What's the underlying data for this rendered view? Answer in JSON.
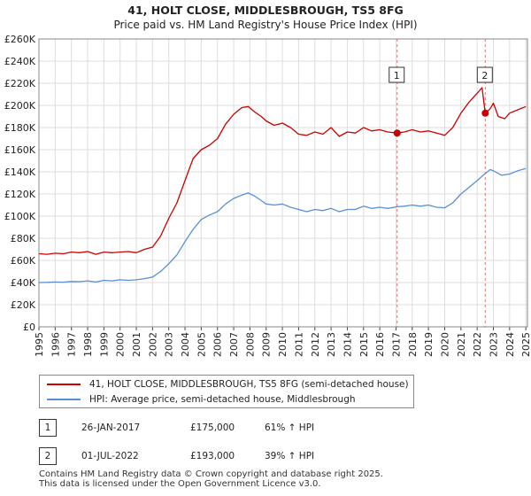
{
  "title": "41, HOLT CLOSE, MIDDLESBROUGH, TS5 8FG",
  "subtitle": "Price paid vs. HM Land Registry's House Price Index (HPI)",
  "colors": {
    "property": "#cc0000",
    "hpi": "#5b8fd4",
    "sale_marker": "#cc0000",
    "vline": "#d87a7a",
    "grid": "#dddddd"
  },
  "chart_data": {
    "type": "line",
    "title": "41, HOLT CLOSE, MIDDLESBROUGH, TS5 8FG",
    "subtitle": "Price paid vs. HM Land Registry's House Price Index (HPI)",
    "xlabel": "",
    "ylabel": "",
    "xlim": [
      1995,
      2025.1
    ],
    "ylim": [
      0,
      260000
    ],
    "y_ticks": [
      {
        "value": 0,
        "label": "£0"
      },
      {
        "value": 20000,
        "label": "£20K"
      },
      {
        "value": 40000,
        "label": "£40K"
      },
      {
        "value": 60000,
        "label": "£60K"
      },
      {
        "value": 80000,
        "label": "£80K"
      },
      {
        "value": 100000,
        "label": "£100K"
      },
      {
        "value": 120000,
        "label": "£120K"
      },
      {
        "value": 140000,
        "label": "£140K"
      },
      {
        "value": 160000,
        "label": "£160K"
      },
      {
        "value": 180000,
        "label": "£180K"
      },
      {
        "value": 200000,
        "label": "£200K"
      },
      {
        "value": 220000,
        "label": "£220K"
      },
      {
        "value": 240000,
        "label": "£240K"
      },
      {
        "value": 260000,
        "label": "£260K"
      }
    ],
    "x_ticks": [
      {
        "value": 1995,
        "label": "1995"
      },
      {
        "value": 1996,
        "label": "1996"
      },
      {
        "value": 1997,
        "label": "1997"
      },
      {
        "value": 1998,
        "label": "1998"
      },
      {
        "value": 1999,
        "label": "1999"
      },
      {
        "value": 2000,
        "label": "2000"
      },
      {
        "value": 2001,
        "label": "2001"
      },
      {
        "value": 2002,
        "label": "2002"
      },
      {
        "value": 2003,
        "label": "2003"
      },
      {
        "value": 2004,
        "label": "2004"
      },
      {
        "value": 2005,
        "label": "2005"
      },
      {
        "value": 2006,
        "label": "2006"
      },
      {
        "value": 2007,
        "label": "2007"
      },
      {
        "value": 2008,
        "label": "2008"
      },
      {
        "value": 2009,
        "label": "2009"
      },
      {
        "value": 2010,
        "label": "2010"
      },
      {
        "value": 2011,
        "label": "2011"
      },
      {
        "value": 2012,
        "label": "2012"
      },
      {
        "value": 2013,
        "label": "2013"
      },
      {
        "value": 2014,
        "label": "2014"
      },
      {
        "value": 2015,
        "label": "2015"
      },
      {
        "value": 2016,
        "label": "2016"
      },
      {
        "value": 2017,
        "label": "2017"
      },
      {
        "value": 2018,
        "label": "2018"
      },
      {
        "value": 2019,
        "label": "2019"
      },
      {
        "value": 2020,
        "label": "2020"
      },
      {
        "value": 2021,
        "label": "2021"
      },
      {
        "value": 2022,
        "label": "2022"
      },
      {
        "value": 2023,
        "label": "2023"
      },
      {
        "value": 2024,
        "label": "2024"
      },
      {
        "value": 2025,
        "label": "2025"
      }
    ],
    "grid": true,
    "series": [
      {
        "name": "41, HOLT CLOSE, MIDDLESBROUGH, TS5 8FG (semi-detached house)",
        "color": "#cc0000",
        "points": [
          [
            1995.0,
            66000
          ],
          [
            1995.5,
            65500
          ],
          [
            1996.0,
            66500
          ],
          [
            1996.5,
            66000
          ],
          [
            1997.0,
            67500
          ],
          [
            1997.5,
            67000
          ],
          [
            1998.0,
            68000
          ],
          [
            1998.5,
            65500
          ],
          [
            1999.0,
            67500
          ],
          [
            1999.5,
            67000
          ],
          [
            2000.0,
            67500
          ],
          [
            2000.5,
            68000
          ],
          [
            2001.0,
            67000
          ],
          [
            2001.5,
            70000
          ],
          [
            2002.0,
            72000
          ],
          [
            2002.5,
            82000
          ],
          [
            2003.0,
            98000
          ],
          [
            2003.5,
            112000
          ],
          [
            2004.0,
            132000
          ],
          [
            2004.5,
            152000
          ],
          [
            2005.0,
            160000
          ],
          [
            2005.5,
            164000
          ],
          [
            2006.0,
            170000
          ],
          [
            2006.5,
            183000
          ],
          [
            2007.0,
            192000
          ],
          [
            2007.5,
            198000
          ],
          [
            2007.9,
            199000
          ],
          [
            2008.3,
            194000
          ],
          [
            2008.7,
            190000
          ],
          [
            2009.0,
            186000
          ],
          [
            2009.5,
            182000
          ],
          [
            2010.0,
            184000
          ],
          [
            2010.5,
            180000
          ],
          [
            2011.0,
            174000
          ],
          [
            2011.5,
            173000
          ],
          [
            2012.0,
            176000
          ],
          [
            2012.5,
            174000
          ],
          [
            2013.0,
            180000
          ],
          [
            2013.5,
            172000
          ],
          [
            2014.0,
            176000
          ],
          [
            2014.5,
            175000
          ],
          [
            2015.0,
            180000
          ],
          [
            2015.5,
            177000
          ],
          [
            2016.0,
            178000
          ],
          [
            2016.5,
            176000
          ],
          [
            2017.07,
            175000
          ],
          [
            2017.5,
            176000
          ],
          [
            2018.0,
            178000
          ],
          [
            2018.5,
            176000
          ],
          [
            2019.0,
            177000
          ],
          [
            2019.5,
            175000
          ],
          [
            2020.0,
            173000
          ],
          [
            2020.5,
            180000
          ],
          [
            2021.0,
            193000
          ],
          [
            2021.5,
            203000
          ],
          [
            2022.0,
            211000
          ],
          [
            2022.3,
            216000
          ],
          [
            2022.5,
            193000
          ],
          [
            2022.8,
            197000
          ],
          [
            2023.0,
            202000
          ],
          [
            2023.3,
            190000
          ],
          [
            2023.7,
            188000
          ],
          [
            2024.0,
            193000
          ],
          [
            2024.5,
            196000
          ],
          [
            2025.0,
            199000
          ]
        ]
      },
      {
        "name": "HPI: Average price, semi-detached house, Middlesbrough",
        "color": "#5b8fd4",
        "points": [
          [
            1995.0,
            40000
          ],
          [
            1995.5,
            40200
          ],
          [
            1996.0,
            40500
          ],
          [
            1996.5,
            40300
          ],
          [
            1997.0,
            41000
          ],
          [
            1997.5,
            40800
          ],
          [
            1998.0,
            41500
          ],
          [
            1998.5,
            40500
          ],
          [
            1999.0,
            42000
          ],
          [
            1999.5,
            41500
          ],
          [
            2000.0,
            42500
          ],
          [
            2000.5,
            42000
          ],
          [
            2001.0,
            42500
          ],
          [
            2001.5,
            43500
          ],
          [
            2002.0,
            45000
          ],
          [
            2002.5,
            50000
          ],
          [
            2003.0,
            57000
          ],
          [
            2003.5,
            65000
          ],
          [
            2004.0,
            77000
          ],
          [
            2004.5,
            88000
          ],
          [
            2005.0,
            97000
          ],
          [
            2005.5,
            101000
          ],
          [
            2006.0,
            104000
          ],
          [
            2006.5,
            111000
          ],
          [
            2007.0,
            116000
          ],
          [
            2007.5,
            119000
          ],
          [
            2007.9,
            121000
          ],
          [
            2008.3,
            118000
          ],
          [
            2008.7,
            114000
          ],
          [
            2009.0,
            111000
          ],
          [
            2009.5,
            110000
          ],
          [
            2010.0,
            111000
          ],
          [
            2010.5,
            108000
          ],
          [
            2011.0,
            106000
          ],
          [
            2011.5,
            104000
          ],
          [
            2012.0,
            106000
          ],
          [
            2012.5,
            105000
          ],
          [
            2013.0,
            107000
          ],
          [
            2013.5,
            104000
          ],
          [
            2014.0,
            106000
          ],
          [
            2014.5,
            106000
          ],
          [
            2015.0,
            109000
          ],
          [
            2015.5,
            107000
          ],
          [
            2016.0,
            108000
          ],
          [
            2016.5,
            107000
          ],
          [
            2017.07,
            108500
          ],
          [
            2017.5,
            109000
          ],
          [
            2018.0,
            110000
          ],
          [
            2018.5,
            109000
          ],
          [
            2019.0,
            110000
          ],
          [
            2019.5,
            108000
          ],
          [
            2020.0,
            107500
          ],
          [
            2020.5,
            112000
          ],
          [
            2021.0,
            120000
          ],
          [
            2021.5,
            126000
          ],
          [
            2022.0,
            132000
          ],
          [
            2022.5,
            138500
          ],
          [
            2022.8,
            142000
          ],
          [
            2023.0,
            141000
          ],
          [
            2023.5,
            137000
          ],
          [
            2024.0,
            138000
          ],
          [
            2024.5,
            141000
          ],
          [
            2025.0,
            143000
          ]
        ]
      }
    ],
    "sales": [
      {
        "id": "1",
        "x": 2017.07,
        "price": 175000
      },
      {
        "id": "2",
        "x": 2022.5,
        "price": 193000
      }
    ],
    "legend": "bottom"
  },
  "legend": {
    "property_label": "41, HOLT CLOSE, MIDDLESBROUGH, TS5 8FG (semi-detached house)",
    "hpi_label": "HPI: Average price, semi-detached house, Middlesbrough"
  },
  "transactions": [
    {
      "id": "1",
      "date": "26-JAN-2017",
      "price": "£175,000",
      "hpi": "61% ↑ HPI"
    },
    {
      "id": "2",
      "date": "01-JUL-2022",
      "price": "£193,000",
      "hpi": "39% ↑ HPI"
    }
  ],
  "footer": {
    "line1": "Contains HM Land Registry data © Crown copyright and database right 2025.",
    "line2": "This data is licensed under the Open Government Licence v3.0."
  }
}
